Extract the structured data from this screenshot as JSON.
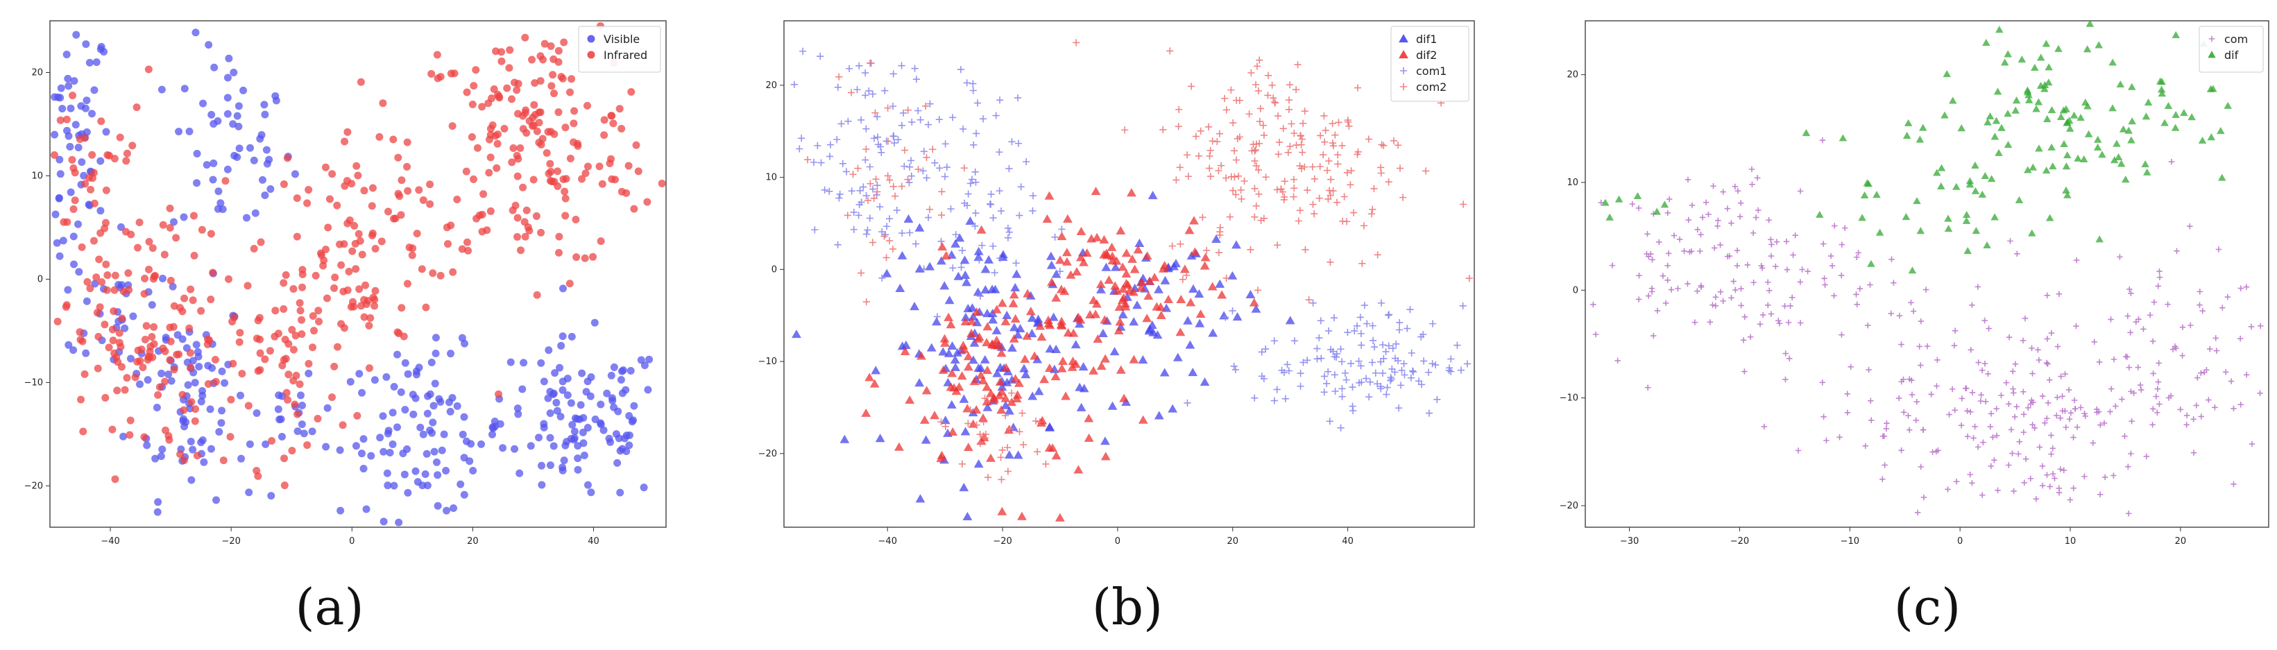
{
  "chart_data": [
    {
      "type": "scatter",
      "caption": "(a)",
      "xlim": [
        -50,
        52
      ],
      "ylim": [
        -24,
        25
      ],
      "xticks": [
        -40,
        -20,
        0,
        20,
        40
      ],
      "yticks": [
        -20,
        -10,
        0,
        10,
        20
      ],
      "legend_position": "top-right",
      "grid": false,
      "series": [
        {
          "name": "Visible",
          "color": "#5555ee",
          "marker": "circle",
          "clusters": [
            {
              "cx": -46,
              "cy": 12,
              "sx": 3,
              "sy": 7,
              "n": 70
            },
            {
              "cx": -20,
              "cy": 13,
              "sx": 5,
              "sy": 5,
              "n": 55
            },
            {
              "cx": -27,
              "cy": -11,
              "sx": 5,
              "sy": 5,
              "n": 75
            },
            {
              "cx": -38,
              "cy": -4,
              "sx": 4,
              "sy": 4,
              "n": 30
            },
            {
              "cx": 12,
              "cy": -15,
              "sx": 7,
              "sy": 4,
              "n": 100
            },
            {
              "cx": 38,
              "cy": -14,
              "sx": 7,
              "sy": 4,
              "n": 110
            },
            {
              "cx": -8,
              "cy": -13,
              "sx": 4,
              "sy": 3,
              "n": 20
            }
          ]
        },
        {
          "name": "Infrared",
          "color": "#ee4444",
          "marker": "circle",
          "clusters": [
            {
              "cx": 30,
              "cy": 13,
              "sx": 10,
              "sy": 6,
              "n": 190
            },
            {
              "cx": 0,
              "cy": 3,
              "sx": 8,
              "sy": 6,
              "n": 110
            },
            {
              "cx": -36,
              "cy": -6,
              "sx": 7,
              "sy": 6,
              "n": 130
            },
            {
              "cx": -42,
              "cy": 10,
              "sx": 5,
              "sy": 5,
              "n": 40
            },
            {
              "cx": -12,
              "cy": -8,
              "sx": 6,
              "sy": 5,
              "n": 60
            }
          ]
        }
      ]
    },
    {
      "type": "scatter",
      "caption": "(b)",
      "xlim": [
        -58,
        62
      ],
      "ylim": [
        -28,
        27
      ],
      "xticks": [
        -40,
        -20,
        0,
        20,
        40
      ],
      "yticks": [
        -20,
        -10,
        0,
        10,
        20
      ],
      "legend_position": "top-right",
      "grid": false,
      "series": [
        {
          "name": "dif1",
          "color": "#4444ee",
          "marker": "triangle",
          "clusters": [
            {
              "cx": -22,
              "cy": -8,
              "sx": 9,
              "sy": 6,
              "n": 130
            },
            {
              "cx": 8,
              "cy": -4,
              "sx": 8,
              "sy": 5,
              "n": 60
            }
          ]
        },
        {
          "name": "dif2",
          "color": "#ee3333",
          "marker": "triangle",
          "clusters": [
            {
              "cx": -20,
              "cy": -12,
              "sx": 9,
              "sy": 6,
              "n": 120
            },
            {
              "cx": 0,
              "cy": -2,
              "sx": 8,
              "sy": 4,
              "n": 90
            }
          ]
        },
        {
          "name": "com1",
          "color": "#8888ee",
          "marker": "plus",
          "clusters": [
            {
              "cx": -42,
              "cy": 13,
              "sx": 8,
              "sy": 6,
              "n": 110
            },
            {
              "cx": -24,
              "cy": 6,
              "sx": 5,
              "sy": 6,
              "n": 50
            },
            {
              "cx": 42,
              "cy": -10,
              "sx": 9,
              "sy": 3,
              "n": 130
            }
          ]
        },
        {
          "name": "com2",
          "color": "#ee7777",
          "marker": "plus",
          "clusters": [
            {
              "cx": 30,
              "cy": 12,
              "sx": 11,
              "sy": 6,
              "n": 190
            },
            {
              "cx": -40,
              "cy": 10,
              "sx": 6,
              "sy": 5,
              "n": 40
            },
            {
              "cx": -22,
              "cy": -18,
              "sx": 6,
              "sy": 3,
              "n": 30
            }
          ]
        }
      ]
    },
    {
      "type": "scatter",
      "caption": "(c)",
      "xlim": [
        -34,
        28
      ],
      "ylim": [
        -22,
        25
      ],
      "xticks": [
        -30,
        -20,
        -10,
        0,
        10,
        20
      ],
      "yticks": [
        -20,
        -10,
        0,
        10,
        20
      ],
      "legend_position": "top-right",
      "grid": false,
      "series": [
        {
          "name": "com",
          "color": "#bb77cc",
          "marker": "plus",
          "clusters": [
            {
              "cx": -22,
              "cy": 3,
              "sx": 6,
              "sy": 4,
              "n": 130
            },
            {
              "cx": -5,
              "cy": -8,
              "sx": 7,
              "sy": 5,
              "n": 90
            },
            {
              "cx": 5,
              "cy": -14,
              "sx": 6,
              "sy": 4,
              "n": 110
            },
            {
              "cx": 17,
              "cy": -6,
              "sx": 6,
              "sy": 5,
              "n": 110
            }
          ]
        },
        {
          "name": "dif",
          "color": "#33aa33",
          "marker": "triangle",
          "clusters": [
            {
              "cx": 12,
              "cy": 17,
              "sx": 7,
              "sy": 4,
              "n": 110
            },
            {
              "cx": -2,
              "cy": 9,
              "sx": 6,
              "sy": 4,
              "n": 40
            },
            {
              "cx": -30,
              "cy": 8,
              "sx": 1.5,
              "sy": 1,
              "n": 6
            }
          ]
        }
      ]
    }
  ]
}
